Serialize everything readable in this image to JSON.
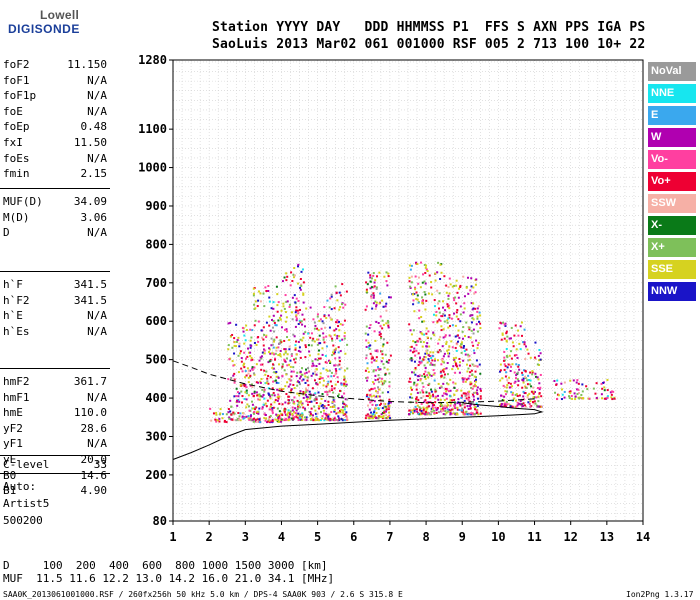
{
  "logo": {
    "line1": "Lowell",
    "line2": "DIGISONDE"
  },
  "header": {
    "line1": "Station YYYY DAY   DDD HHMMSS P1  FFS S AXN PPS IGA PS",
    "line2": "SaoLuis 2013 Mar02 061 001000 RSF 005 2 713 100 10+ 22"
  },
  "params_group1": [
    {
      "k": "foF2",
      "v": "11.150"
    },
    {
      "k": "foF1",
      "v": "N/A"
    },
    {
      "k": "foF1p",
      "v": "N/A"
    },
    {
      "k": "foE",
      "v": "N/A"
    },
    {
      "k": "foEp",
      "v": "0.48"
    },
    {
      "k": "fxI",
      "v": "11.50"
    },
    {
      "k": "foEs",
      "v": "N/A"
    },
    {
      "k": "fmin",
      "v": "2.15"
    }
  ],
  "params_group2": [
    {
      "k": "MUF(D)",
      "v": "34.09"
    },
    {
      "k": "M(D)",
      "v": "3.06"
    },
    {
      "k": "D",
      "v": "N/A"
    }
  ],
  "params_group3": [
    {
      "k": "h`F",
      "v": "341.5"
    },
    {
      "k": "h`F2",
      "v": "341.5"
    },
    {
      "k": "h`E",
      "v": "N/A"
    },
    {
      "k": "h`Es",
      "v": "N/A"
    }
  ],
  "params_group4": [
    {
      "k": "hmF2",
      "v": "361.7"
    },
    {
      "k": "hmF1",
      "v": "N/A"
    },
    {
      "k": "hmE",
      "v": "110.0"
    },
    {
      "k": "yF2",
      "v": "28.6"
    },
    {
      "k": "yF1",
      "v": "N/A"
    },
    {
      "k": "yE",
      "v": "20.0"
    },
    {
      "k": "B0",
      "v": "14.6"
    },
    {
      "k": "B1",
      "v": "4.90"
    }
  ],
  "clevel": {
    "k": "C-level",
    "v": "33"
  },
  "auto": [
    "Auto:",
    "Artist5",
    "500200"
  ],
  "legend": [
    {
      "label": "NoVal",
      "color": "#9a9a9a"
    },
    {
      "label": "NNE",
      "color": "#17e6ef"
    },
    {
      "label": "E",
      "color": "#3aa8ee"
    },
    {
      "label": "W",
      "color": "#b000b0"
    },
    {
      "label": "Vo-",
      "color": "#ff3fa0"
    },
    {
      "label": "Vo+",
      "color": "#ee0033"
    },
    {
      "label": "SSW",
      "color": "#f6b0a6"
    },
    {
      "label": "X-",
      "color": "#0a7a18"
    },
    {
      "label": "X+",
      "color": "#7ec05a"
    },
    {
      "label": "SSE",
      "color": "#d6d220"
    },
    {
      "label": "NNW",
      "color": "#1a14c8"
    }
  ],
  "bottom": {
    "d_row": "D     100  200  400  600  800 1000 1500 3000 [km]",
    "muf_row": "MUF  11.5 11.6 12.2 13.0 14.2 16.0 21.0 34.1 [MHz]"
  },
  "footer": {
    "left": "SAA0K_2013061001000.RSF / 260fx256h 50 kHz 5.0 km / DPS-4 SAA0K 903 / 2.6 S 315.8 E",
    "right": "Ion2Png 1.3.17"
  },
  "chart_data": {
    "type": "scatter",
    "title": "",
    "xlabel": "",
    "ylabel": "",
    "xlim": [
      1,
      14
    ],
    "ylim": [
      80,
      1280
    ],
    "x_ticks": [
      1,
      2,
      3,
      4,
      5,
      6,
      7,
      8,
      9,
      10,
      11,
      12,
      13,
      14
    ],
    "y_ticks": [
      80,
      200,
      300,
      400,
      500,
      600,
      700,
      800,
      900,
      1000,
      1100,
      1280
    ],
    "grid": true,
    "series": [
      {
        "name": "O-trace profile",
        "style": "solid",
        "x": [
          1.0,
          1.5,
          2.0,
          2.5,
          3.0,
          4.0,
          5.0,
          6.0,
          7.0,
          8.0,
          9.0,
          10.0,
          10.6,
          11.0,
          11.2,
          11.0,
          10.5,
          10.0,
          9.5,
          9.0
        ],
        "y": [
          240,
          258,
          278,
          300,
          318,
          327,
          332,
          337,
          342,
          346,
          350,
          354,
          357,
          359,
          364,
          370,
          373,
          378,
          382,
          388
        ]
      },
      {
        "name": "Electron density profile",
        "style": "dashed",
        "x": [
          1.0,
          1.5,
          2.0,
          3.0,
          4.0,
          5.0,
          6.0,
          7.0,
          8.0,
          9.0,
          10.0,
          11.0
        ],
        "y": [
          497,
          480,
          462,
          437,
          418,
          406,
          398,
          391,
          388,
          389,
          392,
          398
        ]
      },
      {
        "name": "Trace band",
        "style": "clusters",
        "clusters": [
          {
            "x": [
              2.0,
              2.5
            ],
            "y": [
              340,
              380
            ]
          },
          {
            "x": [
              2.5,
              3.2
            ],
            "y": [
              345,
              600
            ]
          },
          {
            "x": [
              3.2,
              4.0
            ],
            "y": [
              340,
              700
            ]
          },
          {
            "x": [
              4.0,
              4.6
            ],
            "y": [
              345,
              760
            ]
          },
          {
            "x": [
              4.6,
              5.2
            ],
            "y": [
              345,
              640
            ]
          },
          {
            "x": [
              5.2,
              5.8
            ],
            "y": [
              345,
              700
            ]
          },
          {
            "x": [
              6.3,
              7.0
            ],
            "y": [
              350,
              730
            ]
          },
          {
            "x": [
              7.5,
              8.4
            ],
            "y": [
              360,
              760
            ]
          },
          {
            "x": [
              8.4,
              9.0
            ],
            "y": [
              360,
              720
            ]
          },
          {
            "x": [
              9.0,
              9.5
            ],
            "y": [
              360,
              720
            ]
          },
          {
            "x": [
              10.0,
              10.7
            ],
            "y": [
              380,
              600
            ]
          },
          {
            "x": [
              10.7,
              11.2
            ],
            "y": [
              380,
              550
            ]
          },
          {
            "x": [
              11.5,
              12.5
            ],
            "y": [
              400,
              450
            ]
          },
          {
            "x": [
              12.6,
              13.2
            ],
            "y": [
              400,
              450
            ]
          }
        ]
      }
    ]
  }
}
